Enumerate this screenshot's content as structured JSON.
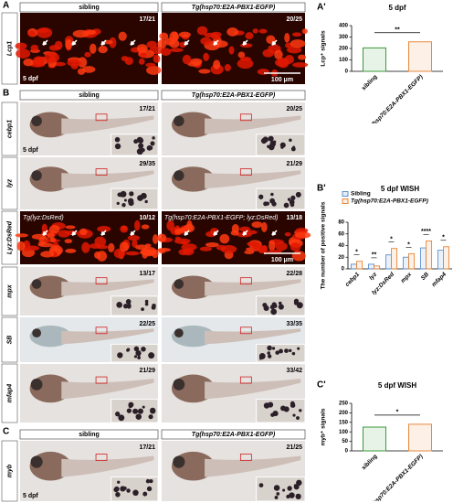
{
  "panels": [
    {
      "label": "A",
      "headers": [
        "sibling",
        "Tg(hsp70:E2A-PBX1-EGFP)"
      ],
      "rows": [
        {
          "name": "Lcp1",
          "counts": [
            "17/21",
            "20/25"
          ],
          "age": "5 dpf",
          "scale": "100 μm"
        }
      ]
    },
    {
      "label": "B",
      "headers": [
        "sibling",
        "Tg(hsp70:E2A-PBX1-EGFP)"
      ],
      "rows": [
        {
          "name": "cebp1",
          "counts": [
            "17/21",
            "20/25"
          ],
          "age": "5 dpf"
        },
        {
          "name": "lyz",
          "counts": [
            "29/35",
            "21/29"
          ]
        },
        {
          "name": "Lyz:DsRed",
          "counts": [
            "10/12",
            "13/18"
          ],
          "captions": [
            "Tg(lyz:DsRed)",
            "Tg(hsp70:E2A-PBX1-EGFP; lyz:DsRed)"
          ],
          "scale": "100 μm"
        },
        {
          "name": "mpx",
          "counts": [
            "13/17",
            "22/28"
          ]
        },
        {
          "name": "SB",
          "counts": [
            "22/25",
            "33/35"
          ]
        },
        {
          "name": "mfap4",
          "counts": [
            "21/29",
            "33/42"
          ]
        }
      ]
    },
    {
      "label": "C",
      "headers": [
        "sibling",
        "Tg(hsp70:E2A-PBX1-EGFP)"
      ],
      "rows": [
        {
          "name": "myb",
          "counts": [
            "17/21",
            "21/25"
          ],
          "age": "5 dpf"
        }
      ]
    }
  ],
  "chart_data": [
    {
      "type": "bar",
      "label": "A'",
      "title": "5 dpf",
      "ylabel": "Lcp⁺ signals",
      "categories": [
        "sibling",
        "Tg(hsp70:E2A-PBX1-EGFP)"
      ],
      "values": [
        205,
        258
      ],
      "colors": [
        "#3a9a3a",
        "#e8873a"
      ],
      "significance": "**",
      "ylim": [
        0,
        400
      ],
      "yticks": [
        0,
        100,
        200,
        300,
        400
      ]
    },
    {
      "type": "grouped-bar",
      "label": "B'",
      "title": "5 dpf WISH",
      "ylabel": "The number of positive signals",
      "categories": [
        "cebp1",
        "lyz",
        "lyz:DsRed",
        "mpx",
        "SB",
        "mfap4"
      ],
      "series": [
        {
          "name": "Sibling",
          "color": "#5b8fd0",
          "values": [
            8,
            8,
            24,
            20,
            36,
            32
          ]
        },
        {
          "name": "Tg(hsp70:E2A-PBX1-EGFP)",
          "color": "#e8873a",
          "values": [
            13,
            5,
            35,
            26,
            48,
            38
          ]
        }
      ],
      "significance": [
        "*",
        "**",
        "*",
        "*",
        "****",
        "*"
      ],
      "ylim": [
        0,
        80
      ],
      "yticks": [
        0,
        20,
        40,
        60,
        80
      ],
      "legend": "top-left"
    },
    {
      "type": "bar",
      "label": "C'",
      "title": "5 dpf WISH",
      "ylabel": "myb⁺ signals",
      "categories": [
        "sibling",
        "Tg(hsp70:E2A-PBX1-EGFP)"
      ],
      "values": [
        125,
        140
      ],
      "colors": [
        "#3a9a3a",
        "#e8873a"
      ],
      "significance": "*",
      "ylim": [
        0,
        250
      ],
      "yticks": [
        0,
        50,
        100,
        150,
        200,
        250
      ]
    }
  ]
}
